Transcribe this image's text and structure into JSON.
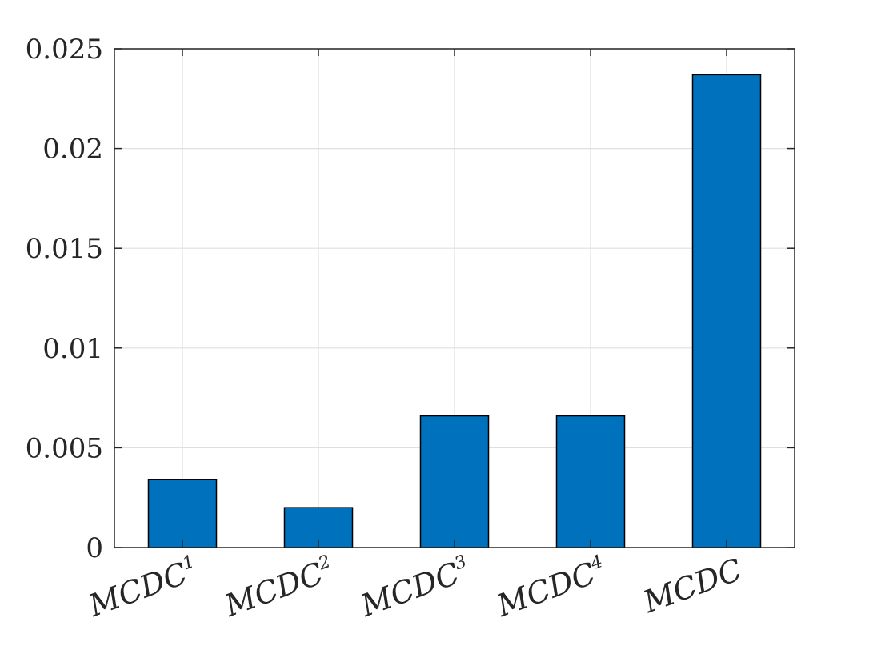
{
  "chart_data": {
    "type": "bar",
    "categories": [
      {
        "base": "MCDC",
        "sup": "1"
      },
      {
        "base": "MCDC",
        "sup": "2"
      },
      {
        "base": "MCDC",
        "sup": "3"
      },
      {
        "base": "MCDC",
        "sup": "4"
      },
      {
        "base": "MCDC",
        "sup": ""
      }
    ],
    "values": [
      0.0034,
      0.002,
      0.0066,
      0.0066,
      0.0237
    ],
    "ylim": [
      0,
      0.025
    ],
    "yticks": [
      0,
      0.005,
      0.01,
      0.015,
      0.02,
      0.025
    ],
    "ytick_labels": [
      "0",
      "0.005",
      "0.01",
      "0.015",
      "0.02",
      "0.025"
    ],
    "grid": true,
    "bar_color": "#0072BD",
    "title": "",
    "xlabel": "",
    "ylabel": ""
  }
}
